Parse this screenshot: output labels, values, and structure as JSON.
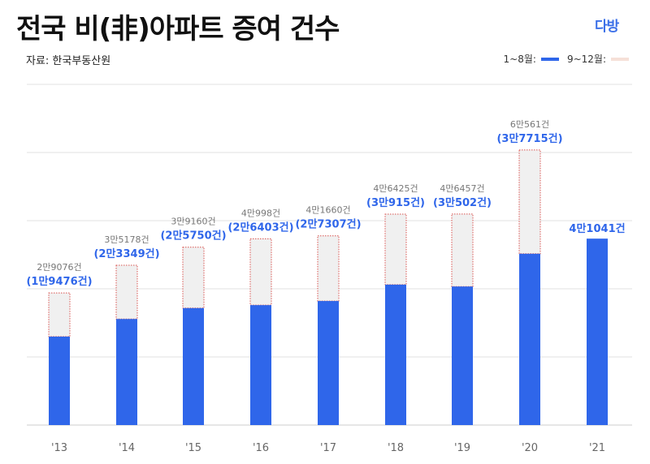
{
  "header": {
    "title": "전국 비(非)아파트 증여 건수",
    "logo": "다방",
    "source": "자료: 한국부동산원"
  },
  "legend": [
    {
      "label": "1~8월:",
      "color": "#2f66ea"
    },
    {
      "label": "9~12월:",
      "color": "#f6e0d8"
    }
  ],
  "chart_data": {
    "type": "bar",
    "stacked": true,
    "categories": [
      "'13",
      "'14",
      "'15",
      "'16",
      "'17",
      "'18",
      "'19",
      "'20",
      "'21"
    ],
    "series": [
      {
        "name": "1~8월",
        "values": [
          19476,
          23349,
          25750,
          26403,
          27307,
          30915,
          30502,
          37715,
          41041
        ],
        "color": "#2f66ea"
      },
      {
        "name": "9~12월",
        "values": [
          9600,
          11829,
          13410,
          14595,
          14353,
          15510,
          15955,
          22846,
          null
        ],
        "color": "#f0f0f0"
      }
    ],
    "totals": [
      29076,
      35178,
      39160,
      40998,
      41660,
      46425,
      46457,
      60561,
      null
    ],
    "total_labels": [
      "2만9076건",
      "3만5178건",
      "3만9160건",
      "4만998건",
      "4만1660건",
      "4만6425건",
      "4만6457건",
      "6만561건",
      ""
    ],
    "partial_labels": [
      "(1만9476건)",
      "(2만3349건)",
      "(2만5750건)",
      "(2만6403건)",
      "(2만7307건)",
      "(3만915건)",
      "(3만502건)",
      "(3만7715건)",
      "4만1041건"
    ],
    "ylim": [
      0,
      75000
    ],
    "grid": true,
    "legend_position": "top-right"
  }
}
